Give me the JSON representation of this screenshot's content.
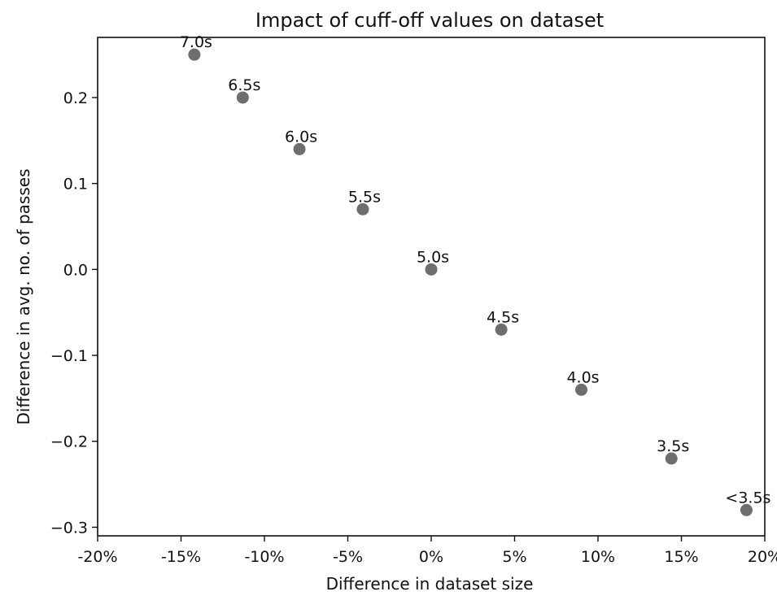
{
  "chart_data": {
    "type": "scatter",
    "title": "Impact of cuff-off values on dataset",
    "xlabel": "Difference in dataset size",
    "ylabel": "Difference in avg. no. of passes",
    "xlim": [
      -20,
      20
    ],
    "ylim": [
      -0.31,
      0.27
    ],
    "x_ticks": [
      -20,
      -15,
      -10,
      -5,
      0,
      5,
      10,
      15,
      20
    ],
    "x_tick_labels": [
      "-20%",
      "-15%",
      "-10%",
      "-5%",
      "0%",
      "5%",
      "10%",
      "15%",
      "20%"
    ],
    "y_ticks": [
      0.2,
      0.1,
      0.0,
      -0.1,
      -0.2,
      -0.3
    ],
    "y_tick_labels": [
      "0.2",
      "0.1",
      "0.0",
      "−0.1",
      "−0.2",
      "−0.3"
    ],
    "grid": false,
    "marker_color": "#6e6e6e",
    "points": [
      {
        "label": "7.0s",
        "x": -14.2,
        "y": 0.25
      },
      {
        "label": "6.5s",
        "x": -11.3,
        "y": 0.2
      },
      {
        "label": "6.0s",
        "x": -7.9,
        "y": 0.14
      },
      {
        "label": "5.5s",
        "x": -4.1,
        "y": 0.07
      },
      {
        "label": "5.0s",
        "x": 0.0,
        "y": 0.0
      },
      {
        "label": "4.5s",
        "x": 4.2,
        "y": -0.07
      },
      {
        "label": "4.0s",
        "x": 9.0,
        "y": -0.14
      },
      {
        "label": "3.5s",
        "x": 14.4,
        "y": -0.22
      },
      {
        "label": "<3.5s",
        "x": 18.9,
        "y": -0.28
      }
    ]
  }
}
